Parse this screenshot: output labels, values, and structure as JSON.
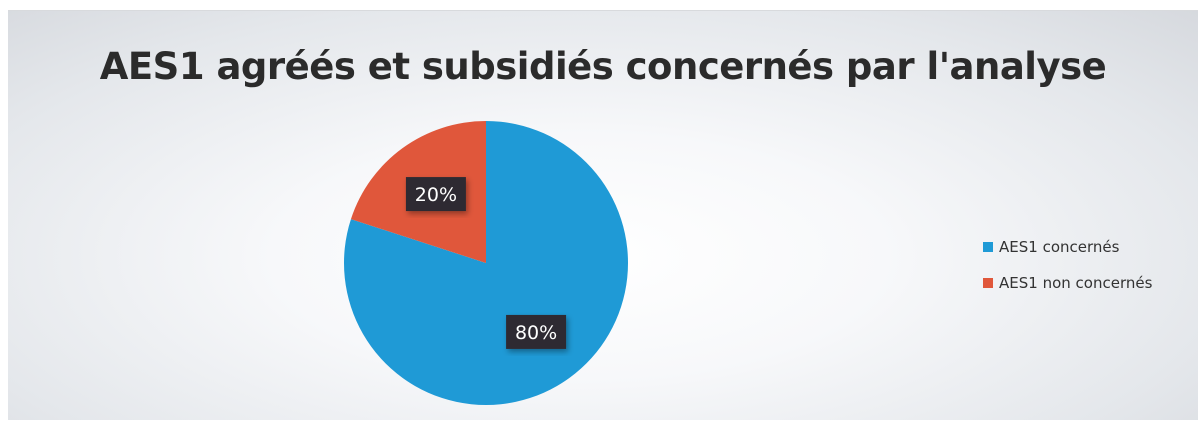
{
  "chart_data": {
    "type": "pie",
    "title": "AES1 agréés et subsidiés concernés par l'analyse",
    "categories": [
      "AES1  concernés",
      "AES1  non concernés"
    ],
    "values": [
      80,
      20
    ],
    "data_labels": [
      "80%",
      "20%"
    ],
    "colors": [
      "#1f9ad6",
      "#e0573b"
    ],
    "legend_position": "right",
    "start_angle": "12 o'clock",
    "direction": "clockwise"
  }
}
